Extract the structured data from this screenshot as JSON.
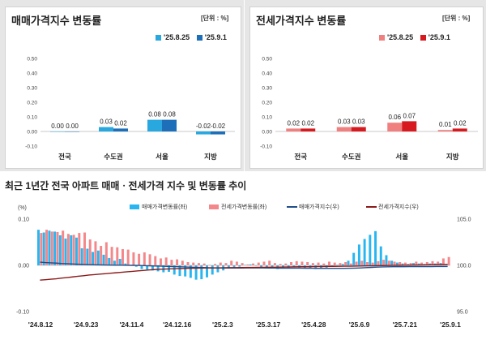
{
  "chart_data": [
    {
      "type": "bar",
      "title": "매매가격지수 변동률",
      "unit": "[단위 : %]",
      "categories": [
        "전국",
        "수도권",
        "서울",
        "지방"
      ],
      "ylim": [
        -0.1,
        0.5
      ],
      "yticks": [
        "0.50",
        "0.40",
        "0.30",
        "0.20",
        "0.10",
        "0.00",
        "-0.10"
      ],
      "series": [
        {
          "name": "'25.8.25",
          "color": "#29a8e0",
          "values": [
            0.0,
            0.03,
            0.08,
            -0.02
          ],
          "labels": [
            "0.00",
            "0.03",
            "0.08",
            "-0.02"
          ]
        },
        {
          "name": "'25.9.1",
          "color": "#1c6fb8",
          "values": [
            0.0,
            0.02,
            0.08,
            -0.02
          ],
          "labels": [
            "0.00",
            "0.02",
            "0.08",
            "-0.02"
          ]
        }
      ]
    },
    {
      "type": "bar",
      "title": "전세가격지수 변동률",
      "unit": "[단위 : %]",
      "categories": [
        "전국",
        "수도권",
        "서울",
        "지방"
      ],
      "ylim": [
        -0.1,
        0.5
      ],
      "yticks": [
        "0.50",
        "0.40",
        "0.30",
        "0.20",
        "0.10",
        "0.00",
        "-0.10"
      ],
      "series": [
        {
          "name": "'25.8.25",
          "color": "#f08080",
          "values": [
            0.02,
            0.03,
            0.06,
            0.01
          ],
          "labels": [
            "0.02",
            "0.03",
            "0.06",
            "0.01"
          ]
        },
        {
          "name": "'25.9.1",
          "color": "#d61a1f",
          "values": [
            0.02,
            0.03,
            0.07,
            0.02
          ],
          "labels": [
            "0.02",
            "0.03",
            "0.07",
            "0.02"
          ]
        }
      ]
    },
    {
      "type": "bar",
      "title": "최근 1년간 전국 아파트 매매ㆍ전세가격 지수 및 변동률 추이",
      "left_unit": "(%)",
      "left_ylim": [
        -0.1,
        0.1
      ],
      "left_yticks": [
        "0.10",
        "0.00",
        "-0.10"
      ],
      "right_ylim": [
        95.0,
        105.0
      ],
      "right_yticks": [
        "105.0",
        "100.0",
        "95.0"
      ],
      "x_ticks": [
        "'24.8.12",
        "'24.9.23",
        "'24.11.4",
        "'24.12.16",
        "'25.2.3",
        "'25.3.17",
        "'25.4.28",
        "'25.6.9",
        "'25.7.21",
        "'25.9.1"
      ],
      "series": [
        {
          "name": "매매가격변동률(좌)",
          "color": "#29b6f0",
          "values": [
            0.077,
            0.071,
            0.075,
            0.073,
            0.065,
            0.058,
            0.065,
            0.06,
            0.037,
            0.036,
            0.029,
            0.032,
            0.023,
            0.016,
            0.01,
            0.014,
            0.004,
            0.001,
            -0.003,
            -0.008,
            -0.009,
            -0.011,
            -0.013,
            -0.015,
            -0.014,
            -0.02,
            -0.023,
            -0.024,
            -0.027,
            -0.031,
            -0.03,
            -0.026,
            -0.02,
            -0.015,
            -0.011,
            -0.006,
            -0.005,
            -0.003,
            0.001,
            0.002,
            -0.001,
            -0.004,
            -0.005,
            -0.006,
            -0.008,
            -0.007,
            -0.006,
            -0.003,
            -0.005,
            -0.007,
            -0.006,
            -0.008,
            -0.007,
            -0.005,
            -0.003,
            0.001,
            0.003,
            0.01,
            0.027,
            0.045,
            0.057,
            0.066,
            0.074,
            0.041,
            0.022,
            0.01,
            0.006,
            0.004,
            0.003,
            0.005,
            0.004,
            0.003,
            0.004,
            0.004,
            0.005,
            0.002
          ]
        },
        {
          "name": "전세가격변동률(좌)",
          "color": "#f4878a",
          "values": [
            0.07,
            0.077,
            0.073,
            0.072,
            0.075,
            0.068,
            0.066,
            0.07,
            0.071,
            0.056,
            0.052,
            0.042,
            0.05,
            0.04,
            0.039,
            0.035,
            0.034,
            0.028,
            0.025,
            0.028,
            0.024,
            0.02,
            0.015,
            0.017,
            0.012,
            0.013,
            0.01,
            0.007,
            0.006,
            0.005,
            0.004,
            0.001,
            0.003,
            0.006,
            0.005,
            0.01,
            0.008,
            0.005,
            0.002,
            0.004,
            0.006,
            0.008,
            0.01,
            0.005,
            0.003,
            0.004,
            0.007,
            0.009,
            0.008,
            0.007,
            0.005,
            0.006,
            0.004,
            0.008,
            0.006,
            0.005,
            0.007,
            0.004,
            0.008,
            0.01,
            0.007,
            0.006,
            0.009,
            0.012,
            0.01,
            0.008,
            0.007,
            0.006,
            0.005,
            0.008,
            0.006,
            0.007,
            0.009,
            0.008,
            0.015,
            0.018
          ]
        },
        {
          "name": "매매가격지수(우)",
          "color": "#1f4e89",
          "values": [
            100.35,
            100.3,
            100.27,
            100.24,
            100.2,
            100.18,
            100.15,
            100.12,
            100.1,
            100.08,
            100.06,
            100.05,
            100.04,
            100.03,
            100.02,
            100.02,
            100.01,
            100.0,
            99.99,
            99.97,
            99.95,
            99.93,
            99.92,
            99.9,
            99.88,
            99.86,
            99.84,
            99.82,
            99.8,
            99.78,
            99.76,
            99.74,
            99.73,
            99.72,
            99.71,
            99.71,
            99.71,
            99.71,
            99.72,
            99.72,
            99.72,
            99.72,
            99.71,
            99.71,
            99.7,
            99.7,
            99.7,
            99.7,
            99.7,
            99.69,
            99.69,
            99.68,
            99.68,
            99.68,
            99.68,
            99.68,
            99.68,
            99.69,
            99.7,
            99.72,
            99.75,
            99.78,
            99.81,
            99.83,
            99.84,
            99.85,
            99.85,
            99.85,
            99.86,
            99.86,
            99.86,
            99.86,
            99.86,
            99.87,
            99.87,
            99.87
          ]
        },
        {
          "name": "전세가격지수(우)",
          "color": "#8b1a1a",
          "values": [
            98.4,
            98.45,
            98.5,
            98.55,
            98.62,
            98.68,
            98.75,
            98.82,
            98.88,
            98.95,
            99.0,
            99.05,
            99.1,
            99.15,
            99.2,
            99.25,
            99.3,
            99.35,
            99.4,
            99.45,
            99.5,
            99.54,
            99.58,
            99.6,
            99.62,
            99.64,
            99.66,
            99.68,
            99.69,
            99.7,
            99.71,
            99.72,
            99.72,
            99.73,
            99.74,
            99.75,
            99.75,
            99.76,
            99.77,
            99.77,
            99.78,
            99.79,
            99.8,
            99.8,
            99.81,
            99.82,
            99.83,
            99.84,
            99.85,
            99.85,
            99.86,
            99.87,
            99.88,
            99.89,
            99.89,
            99.9,
            99.91,
            99.91,
            99.92,
            99.93,
            99.94,
            99.95,
            99.96,
            99.97,
            99.98,
            99.99,
            100.0,
            100.01,
            100.02,
            100.03,
            100.04,
            100.05,
            100.06,
            100.07,
            100.08,
            100.1
          ]
        }
      ]
    }
  ]
}
